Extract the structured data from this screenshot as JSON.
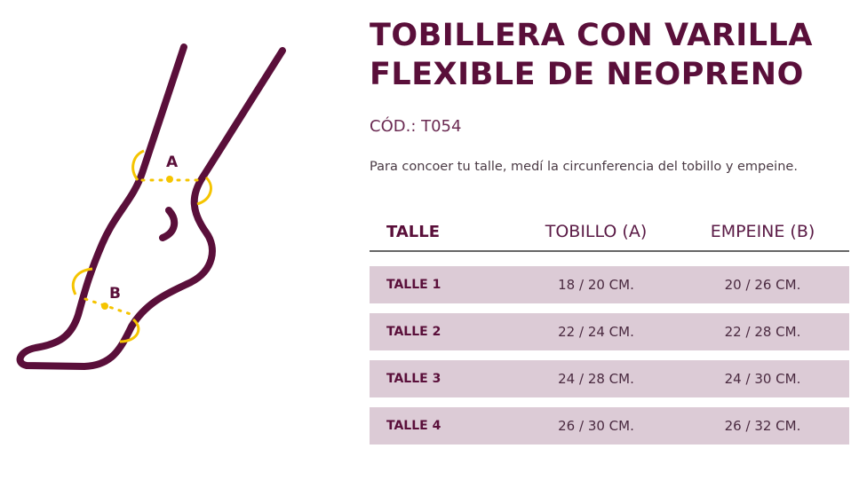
{
  "product": {
    "title_line1": "TOBILLERA CON VARILLA",
    "title_line2": "FLEXIBLE DE NEOPRENO",
    "code": "CÓD.: T054",
    "description": "Para concoer tu talle, medí la circunferencia del tobillo y empeine."
  },
  "diagram": {
    "label_a": "A",
    "label_b": "B",
    "colors": {
      "outline": "#5a0f3a",
      "measure": "#f5c400"
    }
  },
  "table": {
    "headers": [
      "TALLE",
      "TOBILLO (A)",
      "EMPEINE (B)"
    ],
    "rows": [
      [
        "TALLE 1",
        "18 / 20 CM.",
        "20 / 26 CM."
      ],
      [
        "TALLE 2",
        "22 / 24 CM.",
        "22 / 28 CM."
      ],
      [
        "TALLE 3",
        "24 / 28 CM.",
        "24 / 30 CM."
      ],
      [
        "TALLE 4",
        "26 / 30 CM.",
        "26 / 32 CM."
      ]
    ]
  },
  "colors": {
    "primary": "#5a0f3a",
    "row_bg": "#dccbd6"
  }
}
